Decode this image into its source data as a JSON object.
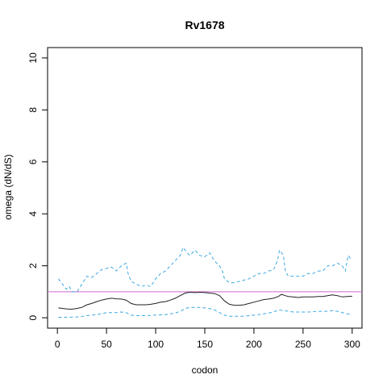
{
  "chart_data": {
    "type": "line",
    "title": "Rv1678",
    "xlabel": "codon",
    "ylabel": "omega (dN/dS)",
    "xlim": [
      -10,
      310
    ],
    "ylim": [
      -0.4,
      10.4
    ],
    "x_ticks": [
      0,
      50,
      100,
      150,
      200,
      250,
      300
    ],
    "y_ticks": [
      0,
      2,
      4,
      6,
      8,
      10
    ],
    "reference_line": {
      "y": 1,
      "color": "#cc66cc"
    },
    "grid": false,
    "legend": "none",
    "series": [
      {
        "role": "upper",
        "color": "#3fa9e0",
        "dash": "dashed",
        "points": [
          [
            1,
            1.5
          ],
          [
            5,
            1.3
          ],
          [
            9,
            1.1
          ],
          [
            12,
            1.2
          ],
          [
            15,
            1.0
          ],
          [
            20,
            1.0
          ],
          [
            25,
            1.3
          ],
          [
            30,
            1.6
          ],
          [
            35,
            1.55
          ],
          [
            40,
            1.7
          ],
          [
            45,
            1.85
          ],
          [
            50,
            1.9
          ],
          [
            55,
            1.95
          ],
          [
            60,
            1.8
          ],
          [
            65,
            2.0
          ],
          [
            70,
            2.1
          ],
          [
            72,
            1.7
          ],
          [
            75,
            1.4
          ],
          [
            80,
            1.3
          ],
          [
            85,
            1.2
          ],
          [
            90,
            1.25
          ],
          [
            95,
            1.2
          ],
          [
            100,
            1.5
          ],
          [
            105,
            1.7
          ],
          [
            110,
            1.8
          ],
          [
            115,
            2.0
          ],
          [
            120,
            2.2
          ],
          [
            125,
            2.4
          ],
          [
            128,
            2.7
          ],
          [
            132,
            2.5
          ],
          [
            135,
            2.4
          ],
          [
            140,
            2.6
          ],
          [
            145,
            2.4
          ],
          [
            150,
            2.35
          ],
          [
            155,
            2.5
          ],
          [
            158,
            2.3
          ],
          [
            162,
            2.1
          ],
          [
            165,
            2.0
          ],
          [
            168,
            1.8
          ],
          [
            170,
            1.5
          ],
          [
            175,
            1.35
          ],
          [
            180,
            1.35
          ],
          [
            185,
            1.4
          ],
          [
            190,
            1.45
          ],
          [
            195,
            1.5
          ],
          [
            200,
            1.6
          ],
          [
            205,
            1.7
          ],
          [
            210,
            1.7
          ],
          [
            215,
            1.8
          ],
          [
            220,
            1.85
          ],
          [
            224,
            2.2
          ],
          [
            226,
            2.6
          ],
          [
            228,
            2.5
          ],
          [
            230,
            2.4
          ],
          [
            232,
            1.8
          ],
          [
            235,
            1.6
          ],
          [
            240,
            1.6
          ],
          [
            245,
            1.6
          ],
          [
            250,
            1.6
          ],
          [
            255,
            1.7
          ],
          [
            260,
            1.7
          ],
          [
            265,
            1.8
          ],
          [
            270,
            1.8
          ],
          [
            275,
            2.0
          ],
          [
            280,
            2.0
          ],
          [
            285,
            2.1
          ],
          [
            290,
            2.0
          ],
          [
            293,
            1.8
          ],
          [
            296,
            2.4
          ],
          [
            298,
            2.3
          ],
          [
            300,
            2.35
          ]
        ]
      },
      {
        "role": "estimate",
        "color": "#222222",
        "dash": "solid",
        "points": [
          [
            1,
            0.38
          ],
          [
            5,
            0.36
          ],
          [
            10,
            0.34
          ],
          [
            15,
            0.33
          ],
          [
            20,
            0.36
          ],
          [
            25,
            0.4
          ],
          [
            30,
            0.5
          ],
          [
            35,
            0.55
          ],
          [
            40,
            0.62
          ],
          [
            45,
            0.68
          ],
          [
            50,
            0.72
          ],
          [
            55,
            0.75
          ],
          [
            60,
            0.73
          ],
          [
            65,
            0.72
          ],
          [
            70,
            0.68
          ],
          [
            75,
            0.55
          ],
          [
            80,
            0.5
          ],
          [
            85,
            0.5
          ],
          [
            90,
            0.5
          ],
          [
            95,
            0.52
          ],
          [
            100,
            0.55
          ],
          [
            105,
            0.6
          ],
          [
            110,
            0.62
          ],
          [
            115,
            0.68
          ],
          [
            120,
            0.75
          ],
          [
            125,
            0.85
          ],
          [
            130,
            0.95
          ],
          [
            135,
            0.98
          ],
          [
            140,
            0.97
          ],
          [
            145,
            0.98
          ],
          [
            150,
            0.97
          ],
          [
            155,
            0.95
          ],
          [
            160,
            0.93
          ],
          [
            165,
            0.85
          ],
          [
            170,
            0.65
          ],
          [
            175,
            0.52
          ],
          [
            180,
            0.48
          ],
          [
            185,
            0.48
          ],
          [
            190,
            0.5
          ],
          [
            195,
            0.55
          ],
          [
            200,
            0.6
          ],
          [
            205,
            0.65
          ],
          [
            210,
            0.7
          ],
          [
            215,
            0.72
          ],
          [
            220,
            0.75
          ],
          [
            225,
            0.82
          ],
          [
            228,
            0.9
          ],
          [
            232,
            0.85
          ],
          [
            235,
            0.82
          ],
          [
            240,
            0.8
          ],
          [
            245,
            0.78
          ],
          [
            250,
            0.8
          ],
          [
            255,
            0.8
          ],
          [
            260,
            0.8
          ],
          [
            265,
            0.82
          ],
          [
            270,
            0.82
          ],
          [
            275,
            0.85
          ],
          [
            280,
            0.88
          ],
          [
            285,
            0.85
          ],
          [
            290,
            0.8
          ],
          [
            295,
            0.82
          ],
          [
            300,
            0.83
          ]
        ]
      },
      {
        "role": "lower",
        "color": "#3fa9e0",
        "dash": "dashed",
        "points": [
          [
            1,
            0.02
          ],
          [
            10,
            0.02
          ],
          [
            20,
            0.03
          ],
          [
            25,
            0.05
          ],
          [
            30,
            0.08
          ],
          [
            35,
            0.1
          ],
          [
            40,
            0.12
          ],
          [
            45,
            0.15
          ],
          [
            50,
            0.2
          ],
          [
            55,
            0.2
          ],
          [
            60,
            0.2
          ],
          [
            65,
            0.22
          ],
          [
            70,
            0.2
          ],
          [
            75,
            0.1
          ],
          [
            80,
            0.08
          ],
          [
            90,
            0.08
          ],
          [
            100,
            0.1
          ],
          [
            110,
            0.12
          ],
          [
            115,
            0.15
          ],
          [
            120,
            0.18
          ],
          [
            125,
            0.25
          ],
          [
            130,
            0.35
          ],
          [
            135,
            0.4
          ],
          [
            140,
            0.4
          ],
          [
            145,
            0.4
          ],
          [
            150,
            0.38
          ],
          [
            155,
            0.35
          ],
          [
            160,
            0.3
          ],
          [
            165,
            0.2
          ],
          [
            170,
            0.1
          ],
          [
            175,
            0.06
          ],
          [
            180,
            0.06
          ],
          [
            190,
            0.06
          ],
          [
            200,
            0.1
          ],
          [
            205,
            0.12
          ],
          [
            210,
            0.15
          ],
          [
            215,
            0.18
          ],
          [
            220,
            0.22
          ],
          [
            225,
            0.3
          ],
          [
            230,
            0.28
          ],
          [
            235,
            0.25
          ],
          [
            240,
            0.22
          ],
          [
            245,
            0.22
          ],
          [
            250,
            0.22
          ],
          [
            255,
            0.22
          ],
          [
            260,
            0.23
          ],
          [
            265,
            0.25
          ],
          [
            270,
            0.25
          ],
          [
            275,
            0.25
          ],
          [
            280,
            0.28
          ],
          [
            285,
            0.25
          ],
          [
            290,
            0.2
          ],
          [
            295,
            0.15
          ],
          [
            300,
            0.12
          ]
        ]
      }
    ]
  }
}
